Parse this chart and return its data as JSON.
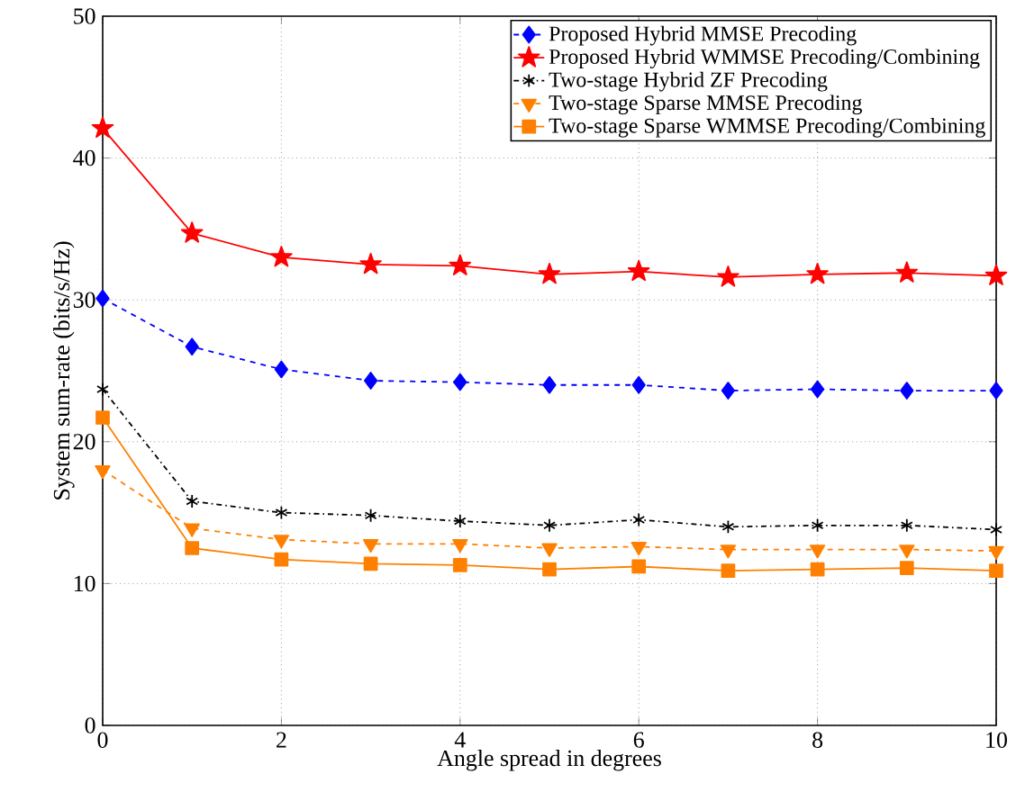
{
  "chart_data": {
    "type": "line",
    "xlabel": "Angle spread in degrees",
    "ylabel": "System sum-rate (bits/s/Hz)",
    "x": [
      0,
      1,
      2,
      3,
      4,
      5,
      6,
      7,
      8,
      9,
      10
    ],
    "xlim": [
      0,
      10
    ],
    "xticks": [
      0,
      2,
      4,
      6,
      8,
      10
    ],
    "ylim": [
      0,
      50
    ],
    "yticks": [
      0,
      10,
      20,
      30,
      40,
      50
    ],
    "grid": true,
    "legend": "top right",
    "series": [
      {
        "name": "Proposed Hybrid MMSE Precoding",
        "color": "#0000ff",
        "marker": "diamond",
        "line_style": "dashed",
        "values": [
          30.1,
          26.7,
          25.1,
          24.3,
          24.2,
          24.0,
          24.0,
          23.6,
          23.7,
          23.6,
          23.6
        ]
      },
      {
        "name": "Proposed Hybrid WMMSE Precoding/Combining",
        "color": "#ff0000",
        "marker": "star",
        "line_style": "solid",
        "values": [
          42.1,
          34.7,
          33.0,
          32.5,
          32.4,
          31.8,
          32.0,
          31.6,
          31.8,
          31.9,
          31.7
        ]
      },
      {
        "name": "Two-stage Hybrid ZF Precoding",
        "color": "#000000",
        "marker": "cross",
        "line_style": "dashdot",
        "values": [
          23.7,
          15.8,
          15.0,
          14.8,
          14.4,
          14.1,
          14.5,
          14.0,
          14.1,
          14.1,
          13.8
        ]
      },
      {
        "name": "Two-stage Sparse MMSE Precoding",
        "color": "#ff8000",
        "marker": "triangle",
        "line_style": "dashed",
        "values": [
          18.0,
          13.9,
          13.1,
          12.8,
          12.8,
          12.5,
          12.6,
          12.4,
          12.4,
          12.4,
          12.3
        ]
      },
      {
        "name": "Two-stage Sparse WMMSE Precoding/Combining",
        "color": "#ff8000",
        "marker": "square",
        "line_style": "solid",
        "values": [
          21.7,
          12.5,
          11.7,
          11.4,
          11.3,
          11.0,
          11.2,
          10.9,
          11.0,
          11.1,
          10.9
        ]
      }
    ]
  }
}
